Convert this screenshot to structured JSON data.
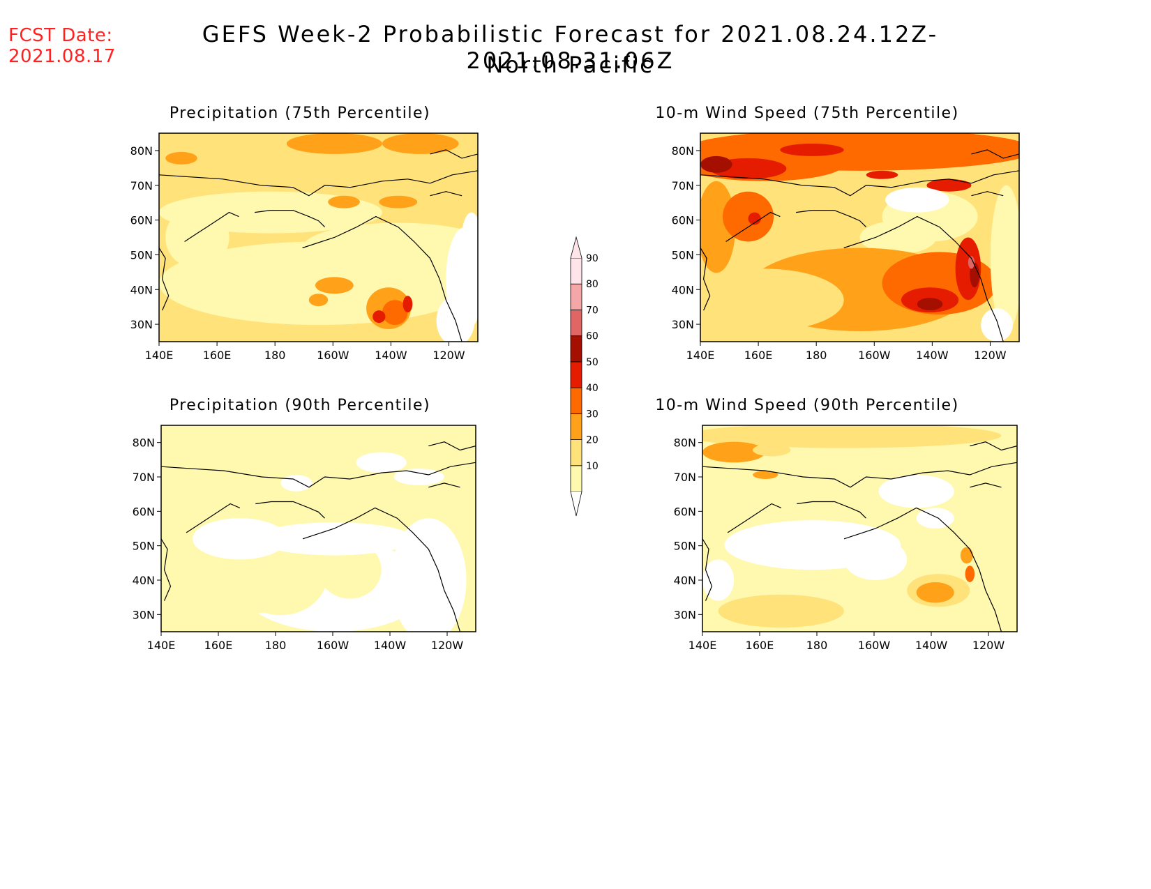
{
  "fcst_date": {
    "label": "FCST Date:",
    "value": "2021.08.17"
  },
  "title": {
    "line1": "GEFS Week-2 Probabilistic Forecast for 2021.08.24.12Z-2021.08.31.06Z",
    "line2": "North Pacific"
  },
  "axes": {
    "lon_ticks": [
      "140E",
      "160E",
      "180",
      "160W",
      "140W",
      "120W"
    ],
    "lat_ticks": [
      "80N",
      "70N",
      "60N",
      "50N",
      "40N",
      "30N"
    ],
    "lon_range": [
      140,
      250
    ],
    "lat_range": [
      25,
      85
    ]
  },
  "colorbar": {
    "levels": [
      "10",
      "20",
      "30",
      "40",
      "50",
      "60",
      "70",
      "80",
      "90"
    ],
    "colors": [
      "#fff9b0",
      "#ffe27a",
      "#ffa21a",
      "#ff6a00",
      "#e51c00",
      "#a50f00",
      "#e06565",
      "#f5a6a6",
      "#ffe4ea"
    ]
  },
  "panels": [
    {
      "id": "precip-75",
      "title": "Precipitation (75th Percentile)"
    },
    {
      "id": "wind-75",
      "title": "10-m Wind Speed (75th Percentile)"
    },
    {
      "id": "precip-90",
      "title": "Precipitation (90th Percentile)"
    },
    {
      "id": "wind-90",
      "title": "10-m Wind Speed (90th Percentile)"
    }
  ]
}
